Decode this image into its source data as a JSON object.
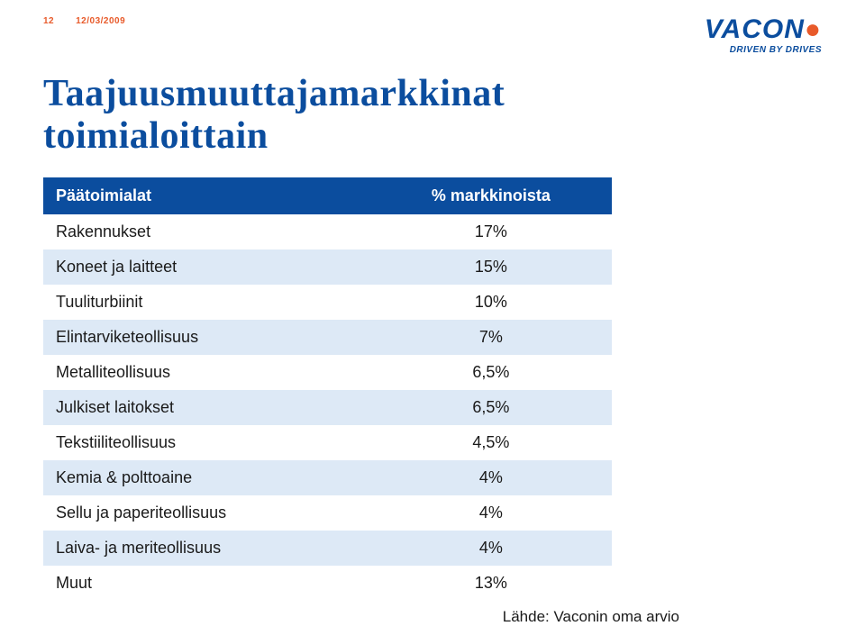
{
  "meta": {
    "page_number": "12",
    "date": "12/03/2009"
  },
  "logo": {
    "text": "VACON",
    "tagline": "DRIVEN BY DRIVES"
  },
  "title": {
    "line1": "Taajuusmuuttajamarkkinat",
    "line2": "toimialoittain"
  },
  "table": {
    "columns": [
      "Päätoimialat",
      "% markkinoista"
    ],
    "rows": [
      {
        "label": "Rakennukset",
        "value": "17%"
      },
      {
        "label": "Koneet ja laitteet",
        "value": "15%"
      },
      {
        "label": "Tuuliturbiinit",
        "value": "10%"
      },
      {
        "label": "Elintarviketeollisuus",
        "value": "7%"
      },
      {
        "label": "Metalliteollisuus",
        "value": "6,5%"
      },
      {
        "label": "Julkiset laitokset",
        "value": "6,5%"
      },
      {
        "label": "Tekstiiliteollisuus",
        "value": "4,5%"
      },
      {
        "label": "Kemia & polttoaine",
        "value": "4%"
      },
      {
        "label": "Sellu ja paperiteollisuus",
        "value": "4%"
      },
      {
        "label": "Laiva- ja meriteollisuus",
        "value": "4%"
      },
      {
        "label": "Muut",
        "value": "13%"
      }
    ],
    "header_bg": "#0b4d9e",
    "header_fg": "#ffffff",
    "row_alt_bg": "#dde9f6",
    "row_bg": "#ffffff",
    "text_color": "#1a1a1a",
    "header_fontsize": 18,
    "body_fontsize": 18
  },
  "source_label": "Lähde: Vaconin oma arvio",
  "colors": {
    "brand_blue": "#0b4d9e",
    "brand_orange": "#e85a2a",
    "meta_text": "#e85a2a"
  }
}
